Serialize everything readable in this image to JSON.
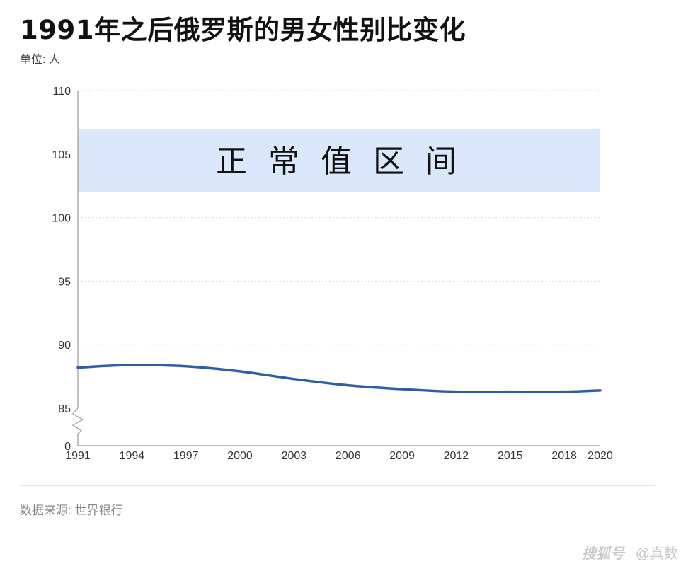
{
  "title": "1991年之后俄罗斯的男女性别比变化",
  "unit_label": "单位: 人",
  "source": "数据来源: 世界银行",
  "watermark": {
    "logo": "搜狐号",
    "account": "@真数"
  },
  "chart_data": {
    "type": "line",
    "title": "1991年之后俄罗斯的男女性别比变化",
    "ylabel": "单位: 人",
    "xlim": [
      1991,
      2020
    ],
    "ylim": [
      85,
      110
    ],
    "y_axis_break": true,
    "y_ticks": [
      "0",
      "85",
      "90",
      "95",
      "100",
      "105",
      "110"
    ],
    "x_ticks": [
      "1991",
      "1994",
      "1997",
      "2000",
      "2003",
      "2006",
      "2009",
      "2012",
      "2015",
      "2018",
      "2020"
    ],
    "grid": "horizontal dashed",
    "band": {
      "label": "正 常 值 区 间",
      "from": 102,
      "to": 107,
      "color": "#dbe8fb"
    },
    "series": [
      {
        "color": "#2e5ea8",
        "x": [
          1991,
          1994,
          1997,
          2000,
          2003,
          2006,
          2009,
          2012,
          2015,
          2018,
          2020
        ],
        "values": [
          88.2,
          88.4,
          88.3,
          87.9,
          87.3,
          86.8,
          86.5,
          86.3,
          86.3,
          86.3,
          86.4
        ]
      }
    ]
  }
}
